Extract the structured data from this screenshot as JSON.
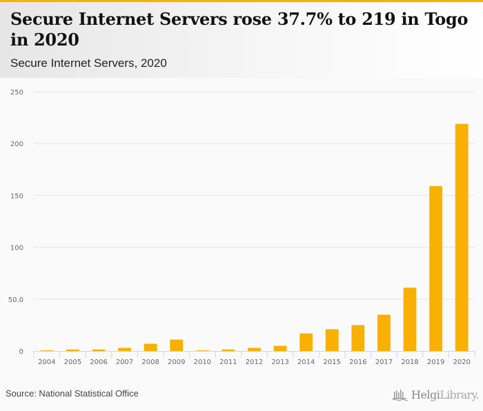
{
  "header": {
    "title": "Secure Internet Servers rose 37.7% to 219 in Togo in 2020",
    "subtitle": "Secure Internet Servers, 2020"
  },
  "footer": {
    "source": "Source: National Statistical Office",
    "logo_bold": "Helgi",
    "logo_light": "Library."
  },
  "colors": {
    "bar": "#f9b000",
    "accent": "#f9b000",
    "grid": "#e3e3e3",
    "axis": "#ccd6eb"
  },
  "chart_data": {
    "type": "bar",
    "title": "Secure Internet Servers rose 37.7% to 219 in Togo in 2020",
    "subtitle": "Secure Internet Servers, 2020",
    "xlabel": "",
    "ylabel": "",
    "categories": [
      "2004",
      "2005",
      "2006",
      "2007",
      "2008",
      "2009",
      "2010",
      "2011",
      "2012",
      "2013",
      "2014",
      "2015",
      "2016",
      "2017",
      "2018",
      "2019",
      "2020"
    ],
    "values": [
      0.6,
      1.5,
      1.5,
      3,
      7,
      11,
      0.6,
      1.5,
      3,
      5,
      17,
      21,
      25,
      35,
      61,
      159,
      219
    ],
    "ylim": [
      0,
      250
    ],
    "yticks": [
      0,
      50,
      100,
      150,
      200,
      250
    ],
    "ytick_labels": [
      "0",
      "50.0",
      "100",
      "150",
      "200",
      "250"
    ],
    "grid": true,
    "legend": "none"
  }
}
